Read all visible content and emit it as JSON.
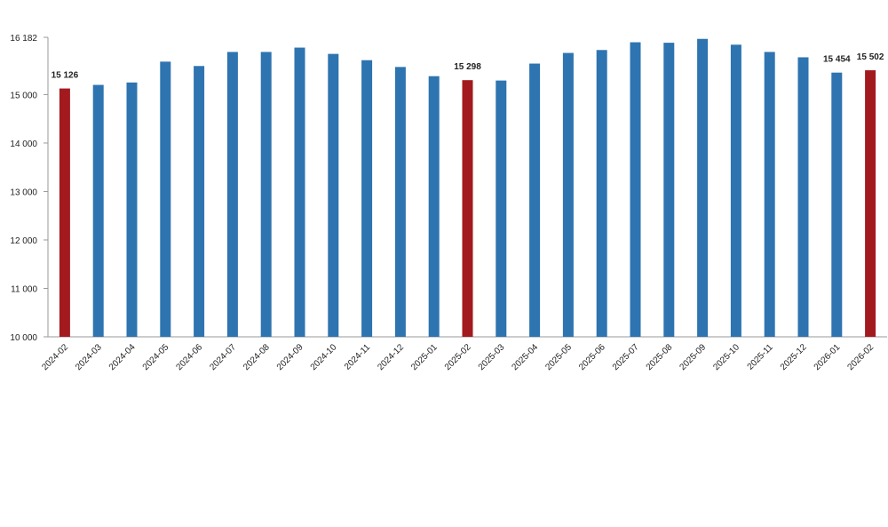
{
  "chart_data": {
    "type": "bar",
    "categories": [
      "2024-02",
      "2024-03",
      "2024-04",
      "2024-05",
      "2024-06",
      "2024-07",
      "2024-08",
      "2024-09",
      "2024-10",
      "2024-11",
      "2024-12",
      "2025-01",
      "2025-02",
      "2025-03",
      "2025-04",
      "2025-05",
      "2025-06",
      "2025-07",
      "2025-08",
      "2025-09",
      "2025-10",
      "2025-11",
      "2025-12",
      "2026-01",
      "2026-02"
    ],
    "values": [
      15126,
      15200,
      15250,
      15680,
      15590,
      15880,
      15880,
      15970,
      15840,
      15710,
      15570,
      15380,
      15298,
      15290,
      15640,
      15860,
      15920,
      16080,
      16070,
      16150,
      16030,
      15880,
      15770,
      15454,
      15502
    ],
    "value_labels": [
      "15 126",
      null,
      null,
      null,
      null,
      null,
      null,
      null,
      null,
      null,
      null,
      null,
      "15 298",
      null,
      null,
      null,
      null,
      null,
      null,
      null,
      null,
      null,
      null,
      "15 454",
      "15 502"
    ],
    "colors": [
      "#a31a1e",
      "#2e74b0",
      "#2e74b0",
      "#2e74b0",
      "#2e74b0",
      "#2e74b0",
      "#2e74b0",
      "#2e74b0",
      "#2e74b0",
      "#2e74b0",
      "#2e74b0",
      "#2e74b0",
      "#a31a1e",
      "#2e74b0",
      "#2e74b0",
      "#2e74b0",
      "#2e74b0",
      "#2e74b0",
      "#2e74b0",
      "#2e74b0",
      "#2e74b0",
      "#2e74b0",
      "#2e74b0",
      "#2e74b0",
      "#a31a1e"
    ],
    "ylim": [
      10000,
      16182
    ],
    "yticks": [
      {
        "value": 10000,
        "label": "10 000"
      },
      {
        "value": 11000,
        "label": "11 000"
      },
      {
        "value": 12000,
        "label": "12 000"
      },
      {
        "value": 13000,
        "label": "13 000"
      },
      {
        "value": 14000,
        "label": "14 000"
      },
      {
        "value": 15000,
        "label": "15 000"
      },
      {
        "value": 16182,
        "label": "16 182"
      }
    ],
    "grid": false
  }
}
